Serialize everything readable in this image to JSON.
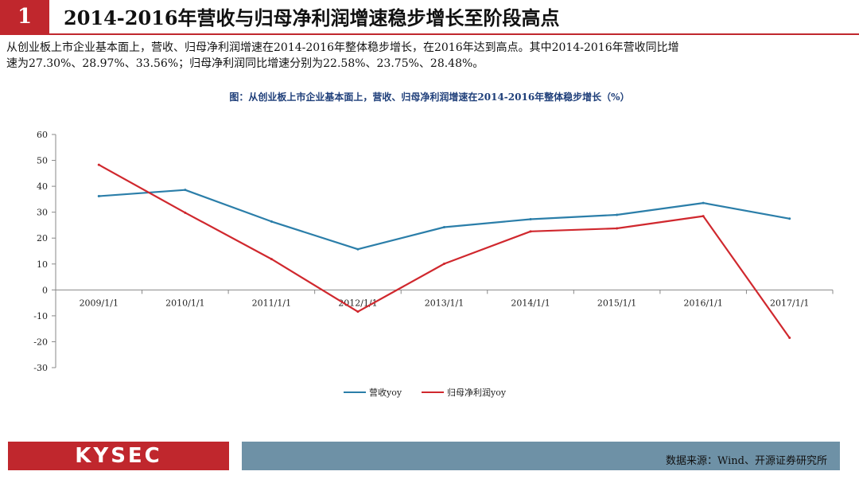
{
  "slide": {
    "number": "1",
    "title": "2014-2016年营收与归母净利润增速稳步增长至阶段高点",
    "desc_line1": "从创业板上市企业基本面上，营收、归母净利润增速在2014-2016年整体稳步增长，在2016年达到高点。其中2014-2016年营收同比增",
    "desc_line2": "速为27.30%、28.97%、33.56%；归母净利润同比增速分别为22.58%、23.75%、28.48%。",
    "logo": "KYSEC",
    "source": "数据来源：Wind、开源证券研究所"
  },
  "chart_data": {
    "type": "line",
    "title": "图：从创业板上市企业基本面上，营收、归母净利润增速在2014-2016年整体稳步增长（%）",
    "categories": [
      "2009/1/1",
      "2010/1/1",
      "2011/1/1",
      "2012/1/1",
      "2013/1/1",
      "2014/1/1",
      "2015/1/1",
      "2016/1/1",
      "2017/1/1"
    ],
    "ylim": [
      -30,
      60
    ],
    "yticks": [
      60,
      50,
      40,
      30,
      20,
      10,
      0,
      -10,
      -20,
      -30
    ],
    "grid": false,
    "legend_position": "bottom",
    "series": [
      {
        "name": "营收yoy",
        "color": "#2b7ea9",
        "values": [
          36.2,
          38.6,
          26.4,
          15.7,
          24.2,
          27.3,
          28.97,
          33.56,
          27.5
        ]
      },
      {
        "name": "归母净利润yoy",
        "color": "#d0282e",
        "values": [
          48.3,
          29.8,
          11.9,
          -8.4,
          10.1,
          22.58,
          23.75,
          28.48,
          -18.5
        ]
      }
    ]
  }
}
